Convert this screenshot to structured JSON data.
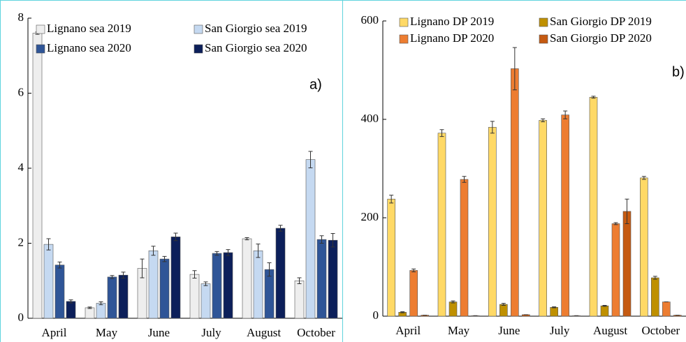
{
  "chart_data": [
    {
      "type": "bar",
      "annotation": "a)",
      "categories": [
        "April",
        "May",
        "June",
        "July",
        "August",
        "October"
      ],
      "ylim": [
        0,
        8
      ],
      "yticks": [
        0,
        2,
        4,
        6,
        8
      ],
      "series": [
        {
          "name": "Lignano sea 2019",
          "color": "#eeeeee",
          "values": [
            7.6,
            0.28,
            1.33,
            1.17,
            2.12,
            1.0
          ],
          "errors": [
            0.03,
            0.02,
            0.25,
            0.1,
            0.03,
            0.08
          ]
        },
        {
          "name": "San Giorgio sea 2019",
          "color": "#c5d9f1",
          "values": [
            1.97,
            0.4,
            1.8,
            0.92,
            1.8,
            4.23
          ],
          "errors": [
            0.15,
            0.04,
            0.12,
            0.05,
            0.18,
            0.22
          ]
        },
        {
          "name": "Lignano sea 2020",
          "color": "#2f5597",
          "values": [
            1.42,
            1.1,
            1.58,
            1.73,
            1.3,
            2.1
          ],
          "errors": [
            0.08,
            0.04,
            0.07,
            0.05,
            0.18,
            0.1
          ]
        },
        {
          "name": "San Giorgio sea 2020",
          "color": "#0c1f5a",
          "values": [
            0.45,
            1.15,
            2.17,
            1.75,
            2.4,
            2.08
          ],
          "errors": [
            0.04,
            0.08,
            0.1,
            0.08,
            0.08,
            0.18
          ]
        }
      ]
    },
    {
      "type": "bar",
      "annotation": "b)",
      "categories": [
        "April",
        "May",
        "June",
        "July",
        "August",
        "October"
      ],
      "ylim": [
        0,
        600
      ],
      "yticks": [
        0,
        200,
        400,
        600
      ],
      "series": [
        {
          "name": "Lignano DP 2019",
          "color": "#ffd966",
          "values": [
            238,
            372,
            384,
            398,
            445,
            281
          ],
          "errors": [
            8,
            7,
            12,
            3,
            2,
            3
          ]
        },
        {
          "name": "San Giorgio DP 2019",
          "color": "#bf9000",
          "values": [
            8,
            29,
            24,
            18,
            21,
            78
          ],
          "errors": [
            1,
            2,
            2,
            1,
            1,
            3
          ]
        },
        {
          "name": "Lignano DP 2020",
          "color": "#ed7d31",
          "values": [
            93,
            278,
            503,
            409,
            188,
            29
          ],
          "errors": [
            3,
            6,
            43,
            8,
            2,
            0
          ]
        },
        {
          "name": "San Giorgio DP 2020",
          "color": "#c55a11",
          "values": [
            2,
            1,
            3,
            1,
            213,
            2
          ],
          "errors": [
            0,
            0,
            0,
            0,
            25,
            0
          ]
        }
      ]
    }
  ]
}
